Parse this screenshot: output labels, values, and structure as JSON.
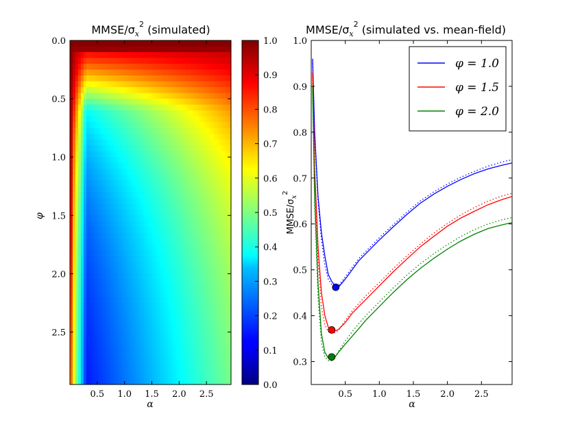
{
  "chart_data": [
    {
      "type": "heatmap",
      "title": "MMSE/σ²ₓ (simulated)",
      "xlabel": "α",
      "ylabel": "φ",
      "xlim": [
        0.0,
        2.95
      ],
      "ylim": [
        0.0,
        2.95
      ],
      "y_inverted": true,
      "xticks": [
        0.5,
        1.0,
        1.5,
        2.0,
        2.5
      ],
      "xtick_labels": [
        "0.5",
        "1.0",
        "1.5",
        "2.0",
        "2.5"
      ],
      "yticks": [
        0.0,
        0.5,
        1.0,
        1.5,
        2.0,
        2.5
      ],
      "ytick_labels": [
        "0.0",
        "0.5",
        "1.0",
        "1.5",
        "2.0",
        "2.5"
      ],
      "colormap": "jet",
      "colorbar": {
        "min": 0.0,
        "max": 1.0,
        "ticks": [
          0.0,
          0.1,
          0.2,
          0.3,
          0.4,
          0.5,
          0.6,
          0.7,
          0.8,
          0.9,
          1.0
        ],
        "tick_labels": [
          "0.0",
          "0.1",
          "0.2",
          "0.3",
          "0.4",
          "0.5",
          "0.6",
          "0.7",
          "0.8",
          "0.9",
          "1.0"
        ]
      },
      "grid": false
    },
    {
      "type": "line",
      "title": "MMSE/σ²ₓ (simulated vs. mean-field)",
      "xlabel": "α",
      "ylabel": "MMSE/σ²ₓ",
      "xlim": [
        0.0,
        2.95
      ],
      "ylim": [
        0.25,
        1.0
      ],
      "xticks": [
        0.5,
        1.0,
        1.5,
        2.0,
        2.5
      ],
      "xtick_labels": [
        "0.5",
        "1.0",
        "1.5",
        "2.0",
        "2.5"
      ],
      "yticks": [
        0.3,
        0.4,
        0.5,
        0.6,
        0.7,
        0.8,
        0.9,
        1.0
      ],
      "ytick_labels": [
        "0.3",
        "0.4",
        "0.5",
        "0.6",
        "0.7",
        "0.8",
        "0.9",
        "1.0"
      ],
      "legend_position": "top-right",
      "grid": false,
      "x": [
        0.02,
        0.05,
        0.1,
        0.15,
        0.2,
        0.25,
        0.3,
        0.35,
        0.4,
        0.5,
        0.6,
        0.7,
        0.8,
        0.9,
        1.0,
        1.2,
        1.4,
        1.6,
        1.8,
        2.0,
        2.2,
        2.4,
        2.6,
        2.8,
        2.95
      ],
      "series": [
        {
          "name": "φ = 1.0",
          "color": "#0000ff",
          "simulated": [
            0.96,
            0.8,
            0.66,
            0.58,
            0.53,
            0.49,
            0.475,
            0.465,
            0.462,
            0.48,
            0.5,
            0.52,
            0.535,
            0.55,
            0.565,
            0.593,
            0.62,
            0.645,
            0.665,
            0.682,
            0.697,
            0.71,
            0.72,
            0.728,
            0.733
          ],
          "mean_field": [
            0.95,
            0.79,
            0.65,
            0.565,
            0.51,
            0.48,
            0.468,
            0.463,
            0.465,
            0.485,
            0.505,
            0.525,
            0.54,
            0.555,
            0.57,
            0.598,
            0.625,
            0.65,
            0.67,
            0.687,
            0.702,
            0.715,
            0.726,
            0.735,
            0.74
          ],
          "minimum": {
            "x": 0.36,
            "y": 0.462
          }
        },
        {
          "name": "φ = 1.5",
          "color": "#ff0000",
          "simulated": [
            0.93,
            0.72,
            0.55,
            0.45,
            0.4,
            0.375,
            0.368,
            0.367,
            0.37,
            0.385,
            0.405,
            0.42,
            0.435,
            0.45,
            0.465,
            0.495,
            0.523,
            0.55,
            0.573,
            0.595,
            0.613,
            0.628,
            0.642,
            0.653,
            0.66
          ],
          "mean_field": [
            0.92,
            0.7,
            0.52,
            0.42,
            0.38,
            0.365,
            0.362,
            0.363,
            0.368,
            0.39,
            0.41,
            0.427,
            0.443,
            0.458,
            0.472,
            0.502,
            0.53,
            0.556,
            0.58,
            0.601,
            0.62,
            0.636,
            0.65,
            0.661,
            0.667
          ],
          "minimum": {
            "x": 0.3,
            "y": 0.369
          }
        },
        {
          "name": "φ = 2.0",
          "color": "#008000",
          "simulated": [
            0.9,
            0.66,
            0.47,
            0.36,
            0.32,
            0.308,
            0.305,
            0.31,
            0.32,
            0.338,
            0.355,
            0.372,
            0.39,
            0.405,
            0.42,
            0.45,
            0.478,
            0.503,
            0.525,
            0.545,
            0.563,
            0.578,
            0.59,
            0.598,
            0.603
          ],
          "mean_field": [
            0.89,
            0.64,
            0.44,
            0.34,
            0.31,
            0.302,
            0.302,
            0.31,
            0.322,
            0.345,
            0.365,
            0.383,
            0.4,
            0.415,
            0.43,
            0.46,
            0.488,
            0.513,
            0.535,
            0.555,
            0.573,
            0.588,
            0.6,
            0.609,
            0.614
          ],
          "minimum": {
            "x": 0.3,
            "y": 0.31
          }
        }
      ]
    }
  ]
}
